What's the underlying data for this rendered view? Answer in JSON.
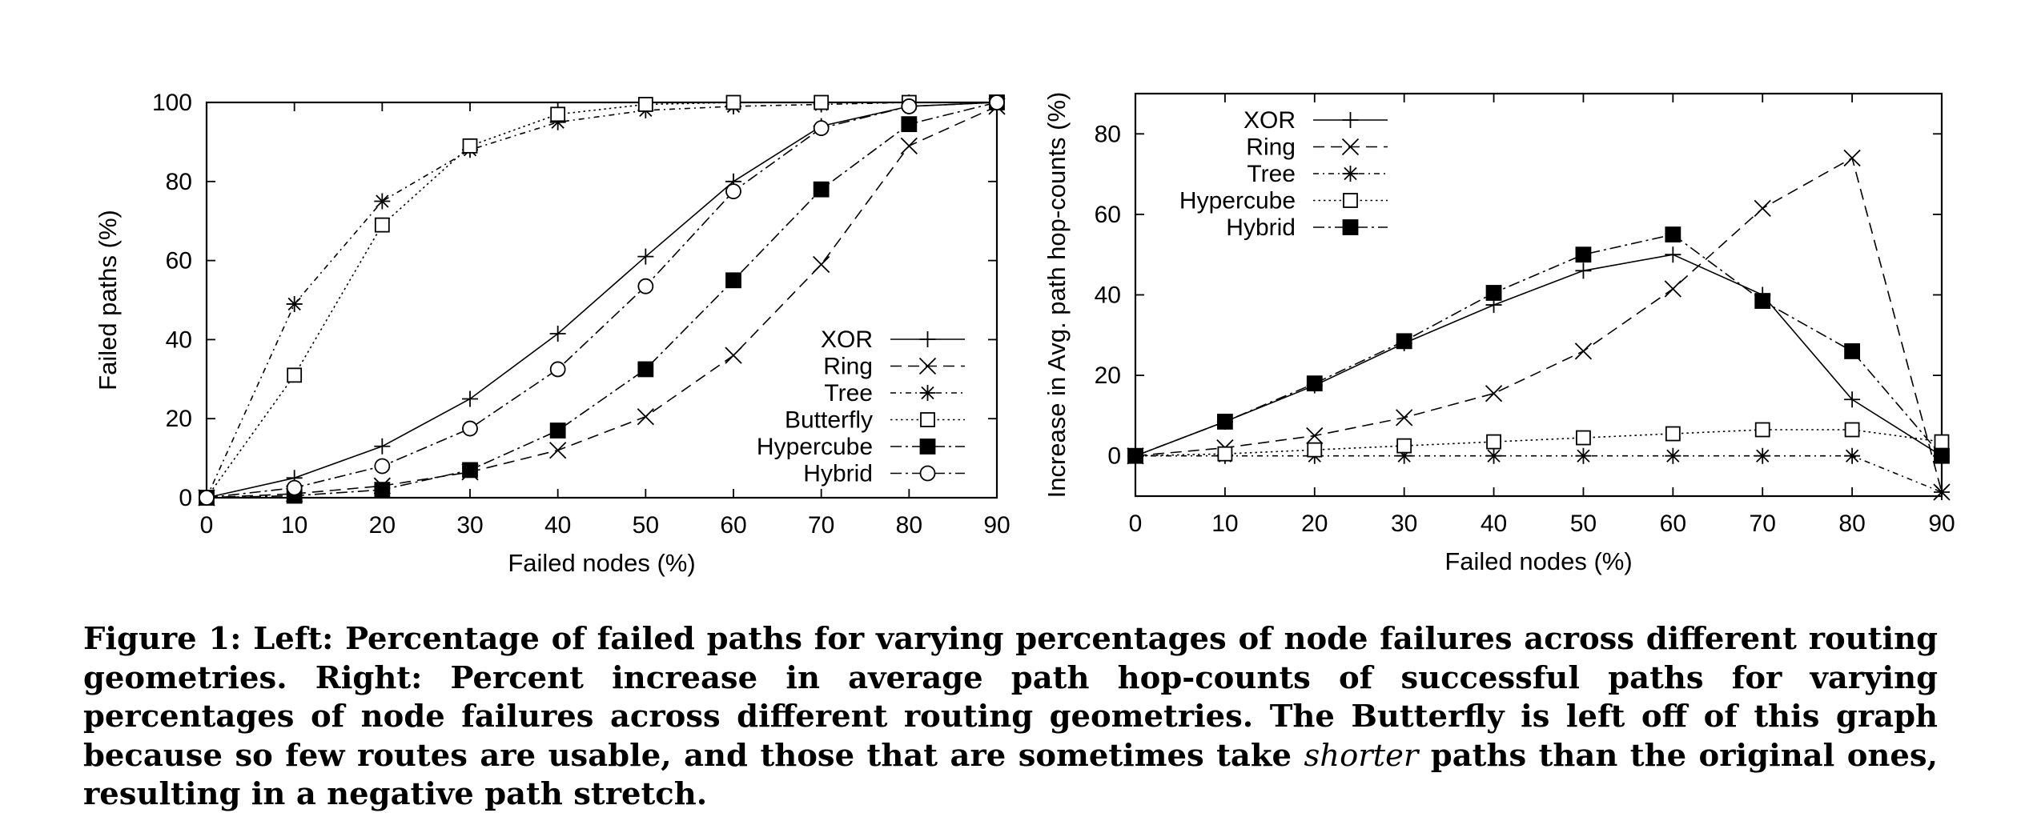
{
  "chart_data": [
    {
      "type": "line",
      "xlabel": "Failed nodes (%)",
      "ylabel": "Failed paths (%)",
      "xlim": [
        0,
        90
      ],
      "ylim": [
        0,
        100
      ],
      "xticks": [
        "0",
        "10",
        "20",
        "30",
        "40",
        "50",
        "60",
        "70",
        "80",
        "90"
      ],
      "yticks": [
        "0",
        "20",
        "40",
        "60",
        "80",
        "100"
      ],
      "grid": false,
      "legend": "bottom-right",
      "x": [
        0,
        10,
        20,
        30,
        40,
        50,
        60,
        70,
        80,
        90
      ],
      "series": [
        {
          "name": "XOR",
          "marker": "plus",
          "dash": "solid",
          "values": [
            0,
            5,
            13,
            25,
            41.5,
            61,
            80,
            94,
            99,
            100
          ]
        },
        {
          "name": "Ring",
          "marker": "cross",
          "dash": "dashed",
          "values": [
            0,
            1,
            3,
            6.5,
            12,
            20.5,
            36,
            59,
            89,
            99
          ]
        },
        {
          "name": "Tree",
          "marker": "star",
          "dash": "dotted-dash",
          "values": [
            0,
            49,
            75,
            88,
            95,
            98,
            99,
            99.5,
            100,
            100
          ]
        },
        {
          "name": "Butterfly",
          "marker": "square",
          "dash": "dotted",
          "values": [
            0,
            31,
            69,
            89,
            97,
            99.5,
            100,
            100,
            100,
            100
          ]
        },
        {
          "name": "Hypercube",
          "marker": "filled-square",
          "dash": "dash-dot",
          "values": [
            0,
            0.5,
            2,
            7,
            17,
            32.5,
            55,
            78,
            94.5,
            100
          ]
        },
        {
          "name": "Hybrid",
          "marker": "circle",
          "dash": "dash-dot",
          "values": [
            0,
            2.5,
            8,
            17.5,
            32.5,
            53.5,
            77.5,
            93.5,
            99,
            100
          ]
        }
      ]
    },
    {
      "type": "line",
      "xlabel": "Failed nodes (%)",
      "ylabel": "Increase in Avg. path hop-counts (%)",
      "xlim": [
        0,
        90
      ],
      "ylim": [
        -10,
        90
      ],
      "xticks": [
        "0",
        "10",
        "20",
        "30",
        "40",
        "50",
        "60",
        "70",
        "80",
        "90"
      ],
      "yticks": [
        "0",
        "20",
        "40",
        "60",
        "80"
      ],
      "grid": false,
      "legend": "top-left",
      "x": [
        0,
        10,
        20,
        30,
        40,
        50,
        60,
        70,
        80,
        90
      ],
      "series": [
        {
          "name": "XOR",
          "marker": "plus",
          "dash": "solid",
          "values": [
            0,
            8.5,
            17.5,
            28,
            37.5,
            46,
            50,
            40,
            14,
            0
          ]
        },
        {
          "name": "Ring",
          "marker": "cross",
          "dash": "dashed",
          "values": [
            0,
            2,
            5,
            9.5,
            15.5,
            26,
            41.5,
            61.5,
            74,
            -9
          ]
        },
        {
          "name": "Tree",
          "marker": "star",
          "dash": "dotted-dash",
          "values": [
            0,
            0,
            0,
            0,
            0,
            0,
            0,
            0,
            0,
            -9
          ]
        },
        {
          "name": "Hypercube",
          "marker": "square",
          "dash": "dotted",
          "values": [
            0,
            0.5,
            1.5,
            2.5,
            3.5,
            4.5,
            5.5,
            6.5,
            6.5,
            3.5
          ]
        },
        {
          "name": "Hybrid",
          "marker": "filled-square",
          "dash": "dash-dot",
          "values": [
            0,
            8.5,
            18,
            28.5,
            40.5,
            50,
            55,
            38.5,
            26,
            0
          ]
        }
      ]
    }
  ],
  "caption": {
    "part1": "Figure 1: Left: Percentage of failed paths for varying percentages of node failures across different routing geometries. Right: Percent increase in average path hop-counts of successful paths for varying percentages of node failures across different routing geometries. The Butterfly is left off of this graph because so few routes are usable, and those that are sometimes take ",
    "emphasis": "shorter",
    "part2": " paths than the original ones, resulting in a negative path stretch."
  },
  "colors": {
    "ink": "#000000",
    "background": "#ffffff"
  }
}
